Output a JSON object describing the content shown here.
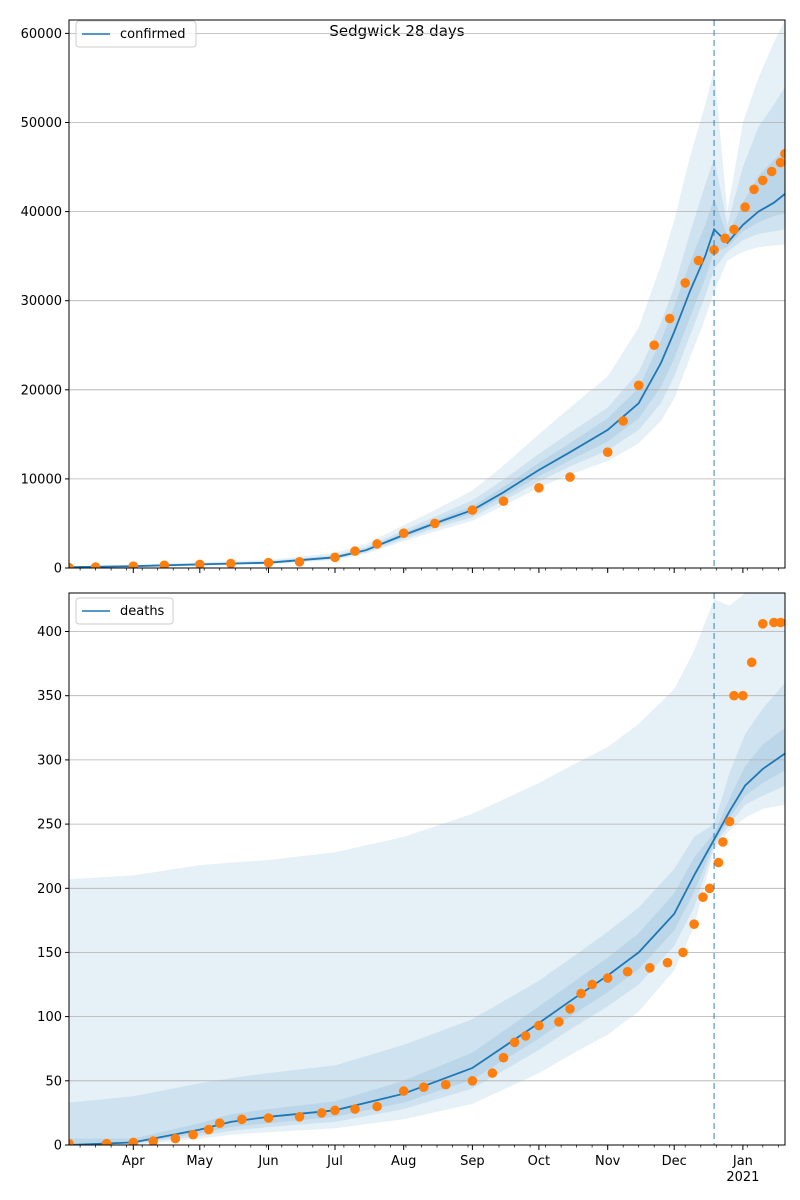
{
  "figure_title": "Sedgwick 28 days",
  "colors": {
    "band": "#1f77b4",
    "model_line": "#1f77b4",
    "observed": "#ff7f0e",
    "grid": "#b0b0b0",
    "vline": "#1f77b4"
  },
  "chart_data": [
    {
      "type": "line",
      "legend_label": "confirmed",
      "legend_position": "top-left",
      "grid": "horizontal",
      "xlim": [
        "2020-03-03",
        "2021-01-20"
      ],
      "ylim": [
        0,
        61500
      ],
      "yticks": [
        0,
        10000,
        20000,
        30000,
        40000,
        50000,
        60000
      ],
      "forecast_start": "2020-12-19",
      "model": {
        "x": [
          "2020-03-03",
          "2020-04-01",
          "2020-05-01",
          "2020-06-01",
          "2020-07-01",
          "2020-07-15",
          "2020-08-01",
          "2020-08-15",
          "2020-09-01",
          "2020-09-15",
          "2020-10-01",
          "2020-10-15",
          "2020-11-01",
          "2020-11-15",
          "2020-11-25",
          "2020-12-01",
          "2020-12-08",
          "2020-12-15",
          "2020-12-19",
          "2020-12-25",
          "2021-01-01",
          "2021-01-08",
          "2021-01-15",
          "2021-01-20"
        ],
        "median": [
          100,
          200,
          400,
          600,
          1200,
          2000,
          3700,
          5000,
          6500,
          8500,
          11000,
          13000,
          15500,
          18500,
          23000,
          26500,
          31000,
          35000,
          38000,
          36500,
          38500,
          40000,
          41000,
          42000
        ],
        "bands": [
          {
            "lower": [
              50,
              100,
              250,
              400,
              900,
              1600,
              3000,
              4100,
              5300,
              7000,
              9000,
              10500,
              12000,
              14000,
              16500,
              19000,
              23500,
              28000,
              31000,
              34500,
              35500,
              36000,
              36200,
              36300
            ],
            "upper": [
              200,
              350,
              650,
              900,
              1700,
              2700,
              4800,
              6500,
              8700,
              11500,
              15000,
              18000,
              21500,
              27000,
              34000,
              39000,
              46000,
              52000,
              56000,
              40000,
              50000,
              55000,
              59000,
              61500
            ]
          },
          {
            "lower": [
              70,
              140,
              310,
              480,
              1000,
              1750,
              3250,
              4450,
              5700,
              7550,
              9700,
              11400,
              13200,
              15500,
              18500,
              21500,
              26000,
              30500,
              33500,
              35500,
              36800,
              37500,
              37800,
              38000
            ],
            "upper": [
              150,
              280,
              530,
              760,
              1450,
              2350,
              4250,
              5750,
              7600,
              9900,
              12800,
              15200,
              18000,
              22000,
              27500,
              31500,
              37500,
              43000,
              46000,
              38500,
              45000,
              49500,
              52000,
              54000
            ]
          },
          {
            "lower": [
              85,
              170,
              360,
              540,
              1100,
              1880,
              3480,
              4730,
              6100,
              8000,
              10300,
              12100,
              14200,
              16800,
              20300,
              23500,
              28000,
              32500,
              35500,
              36000,
              37800,
              38800,
              39500,
              39800
            ],
            "upper": [
              120,
              240,
              460,
              680,
              1320,
              2150,
              3950,
              5300,
              6950,
              9100,
              11800,
              14000,
              16800,
              20200,
              25500,
              29300,
              34200,
              38500,
              41500,
              37200,
              41000,
              44000,
              45800,
              47000
            ]
          }
        ]
      },
      "observed": {
        "x": [
          "2020-03-03",
          "2020-03-15",
          "2020-04-01",
          "2020-04-15",
          "2020-05-01",
          "2020-05-15",
          "2020-06-01",
          "2020-06-15",
          "2020-07-01",
          "2020-07-10",
          "2020-07-20",
          "2020-08-01",
          "2020-08-15",
          "2020-09-01",
          "2020-09-15",
          "2020-10-01",
          "2020-10-15",
          "2020-11-01",
          "2020-11-08",
          "2020-11-15",
          "2020-11-22",
          "2020-11-29",
          "2020-12-06",
          "2020-12-12",
          "2020-12-19",
          "2020-12-24",
          "2020-12-28",
          "2021-01-02",
          "2021-01-06",
          "2021-01-10",
          "2021-01-14",
          "2021-01-18",
          "2021-01-20"
        ],
        "y": [
          50,
          100,
          200,
          300,
          400,
          500,
          600,
          700,
          1200,
          1900,
          2700,
          3900,
          5000,
          6500,
          7500,
          9000,
          10200,
          13000,
          16500,
          20500,
          25000,
          28000,
          32000,
          34500,
          35700,
          37000,
          38000,
          40500,
          42500,
          43500,
          44500,
          45500,
          46500
        ]
      }
    },
    {
      "type": "line",
      "legend_label": "deaths",
      "legend_position": "top-left",
      "grid": "horizontal",
      "xlim": [
        "2020-03-03",
        "2021-01-20"
      ],
      "ylim": [
        0,
        430
      ],
      "yticks": [
        0,
        50,
        100,
        150,
        200,
        250,
        300,
        350,
        400
      ],
      "xtick_labels": [
        {
          "date": "2020-04-01",
          "label": "Apr"
        },
        {
          "date": "2020-05-01",
          "label": "May"
        },
        {
          "date": "2020-06-01",
          "label": "Jun"
        },
        {
          "date": "2020-07-01",
          "label": "Jul"
        },
        {
          "date": "2020-08-01",
          "label": "Aug"
        },
        {
          "date": "2020-09-01",
          "label": "Sep"
        },
        {
          "date": "2020-10-01",
          "label": "Oct"
        },
        {
          "date": "2020-11-01",
          "label": "Nov"
        },
        {
          "date": "2020-12-01",
          "label": "Dec"
        },
        {
          "date": "2021-01-01",
          "label": "Jan"
        }
      ],
      "year_label": "2021",
      "forecast_start": "2020-12-19",
      "model": {
        "x": [
          "2020-03-03",
          "2020-04-01",
          "2020-05-01",
          "2020-05-15",
          "2020-06-01",
          "2020-07-01",
          "2020-08-01",
          "2020-09-01",
          "2020-10-01",
          "2020-10-15",
          "2020-11-01",
          "2020-11-15",
          "2020-12-01",
          "2020-12-10",
          "2020-12-19",
          "2020-12-26",
          "2021-01-02",
          "2021-01-10",
          "2021-01-20"
        ],
        "median": [
          0,
          2,
          12,
          18,
          22,
          27,
          40,
          60,
          95,
          112,
          132,
          150,
          180,
          210,
          238,
          260,
          280,
          293,
          305
        ],
        "bands": [
          {
            "lower": [
              0,
              0,
              5,
              8,
              10,
              13,
              20,
              32,
              56,
              70,
              86,
              104,
              136,
              170,
              230,
              245,
              255,
              262,
              265
            ],
            "upper": [
              207,
              210,
              218,
              220,
              222,
              228,
              240,
              258,
              282,
              295,
              310,
              328,
              355,
              385,
              425,
              420,
              430,
              430,
              430
            ]
          },
          {
            "lower": [
              0,
              1,
              7,
              11,
              14,
              18,
              28,
              44,
              74,
              90,
              108,
              125,
              155,
              185,
              233,
              250,
              265,
              272,
              280
            ],
            "upper": [
              33,
              38,
              48,
              52,
              56,
              62,
              78,
              98,
              128,
              145,
              166,
              185,
              215,
              240,
              250,
              290,
              320,
              340,
              360
            ]
          },
          {
            "lower": [
              0,
              1.5,
              9,
              14,
              17,
              22,
              33,
              51,
              83,
              100,
              119,
              137,
              167,
              197,
              235,
              255,
              272,
              282,
              292
            ],
            "upper": [
              5,
              5,
              17,
              24,
              28,
              34,
              50,
              72,
              108,
              125,
              146,
              165,
              196,
              224,
              243,
              270,
              295,
              312,
              325
            ]
          }
        ]
      },
      "observed": {
        "x": [
          "2020-03-03",
          "2020-03-20",
          "2020-04-01",
          "2020-04-10",
          "2020-04-20",
          "2020-04-28",
          "2020-05-05",
          "2020-05-10",
          "2020-05-20",
          "2020-06-01",
          "2020-06-15",
          "2020-06-25",
          "2020-07-01",
          "2020-07-10",
          "2020-07-20",
          "2020-08-01",
          "2020-08-10",
          "2020-08-20",
          "2020-09-01",
          "2020-09-10",
          "2020-09-15",
          "2020-09-20",
          "2020-09-25",
          "2020-10-01",
          "2020-10-10",
          "2020-10-15",
          "2020-10-20",
          "2020-10-25",
          "2020-11-01",
          "2020-11-10",
          "2020-11-20",
          "2020-11-28",
          "2020-12-05",
          "2020-12-10",
          "2020-12-14",
          "2020-12-17",
          "2020-12-21",
          "2020-12-23",
          "2020-12-26",
          "2020-12-28",
          "2021-01-01",
          "2021-01-05",
          "2021-01-10",
          "2021-01-15",
          "2021-01-18"
        ],
        "y": [
          1,
          1,
          2,
          3,
          5,
          8,
          12,
          17,
          20,
          21,
          22,
          25,
          27,
          28,
          30,
          42,
          45,
          47,
          50,
          56,
          68,
          80,
          85,
          93,
          96,
          106,
          118,
          125,
          130,
          135,
          138,
          142,
          150,
          172,
          193,
          200,
          220,
          236,
          252,
          350,
          350,
          376,
          406,
          407,
          407
        ]
      }
    }
  ]
}
